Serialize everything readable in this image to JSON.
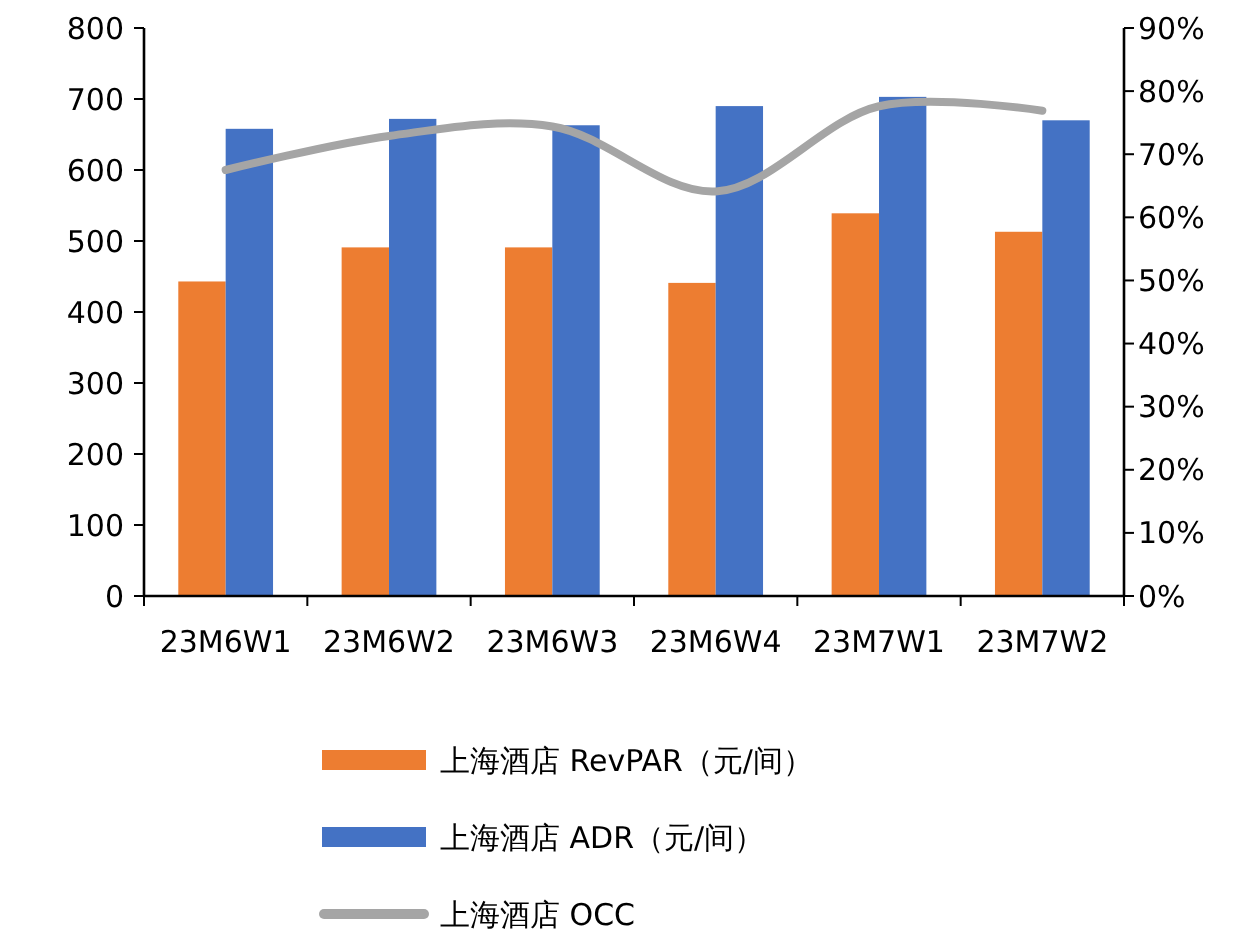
{
  "chart_data": {
    "type": "bar",
    "categories": [
      "23M6W1",
      "23M6W2",
      "23M6W3",
      "23M6W4",
      "23M7W1",
      "23M7W2"
    ],
    "series": [
      {
        "name": "上海酒店 RevPAR（元/间）",
        "color": "#ed7d31",
        "values": [
          443,
          491,
          491,
          441,
          539,
          513
        ]
      },
      {
        "name": "上海酒店 ADR（元/间）",
        "color": "#4472c4",
        "values": [
          658,
          672,
          663,
          690,
          703,
          670
        ]
      },
      {
        "name": "上海酒店 OCC",
        "color": "#a5a5a5",
        "type": "line",
        "axis": "y2",
        "values": [
          67.5,
          72.9,
          74.4,
          64.1,
          77.6,
          76.9
        ]
      }
    ],
    "ylim": [
      0,
      800
    ],
    "yticks": [
      0,
      100,
      200,
      300,
      400,
      500,
      600,
      700,
      800
    ],
    "y2lim": [
      0,
      90
    ],
    "y2ticks": [
      {
        "value": 0,
        "label": "0%"
      },
      {
        "value": 10,
        "label": "10%"
      },
      {
        "value": 20,
        "label": "20%"
      },
      {
        "value": 30,
        "label": "30%"
      },
      {
        "value": 40,
        "label": "40%"
      },
      {
        "value": 50,
        "label": "50%"
      },
      {
        "value": 60,
        "label": "60%"
      },
      {
        "value": 70,
        "label": "70%"
      },
      {
        "value": 80,
        "label": "80%"
      },
      {
        "value": 90,
        "label": "90%"
      }
    ],
    "legend": "bottom",
    "grid": false
  }
}
